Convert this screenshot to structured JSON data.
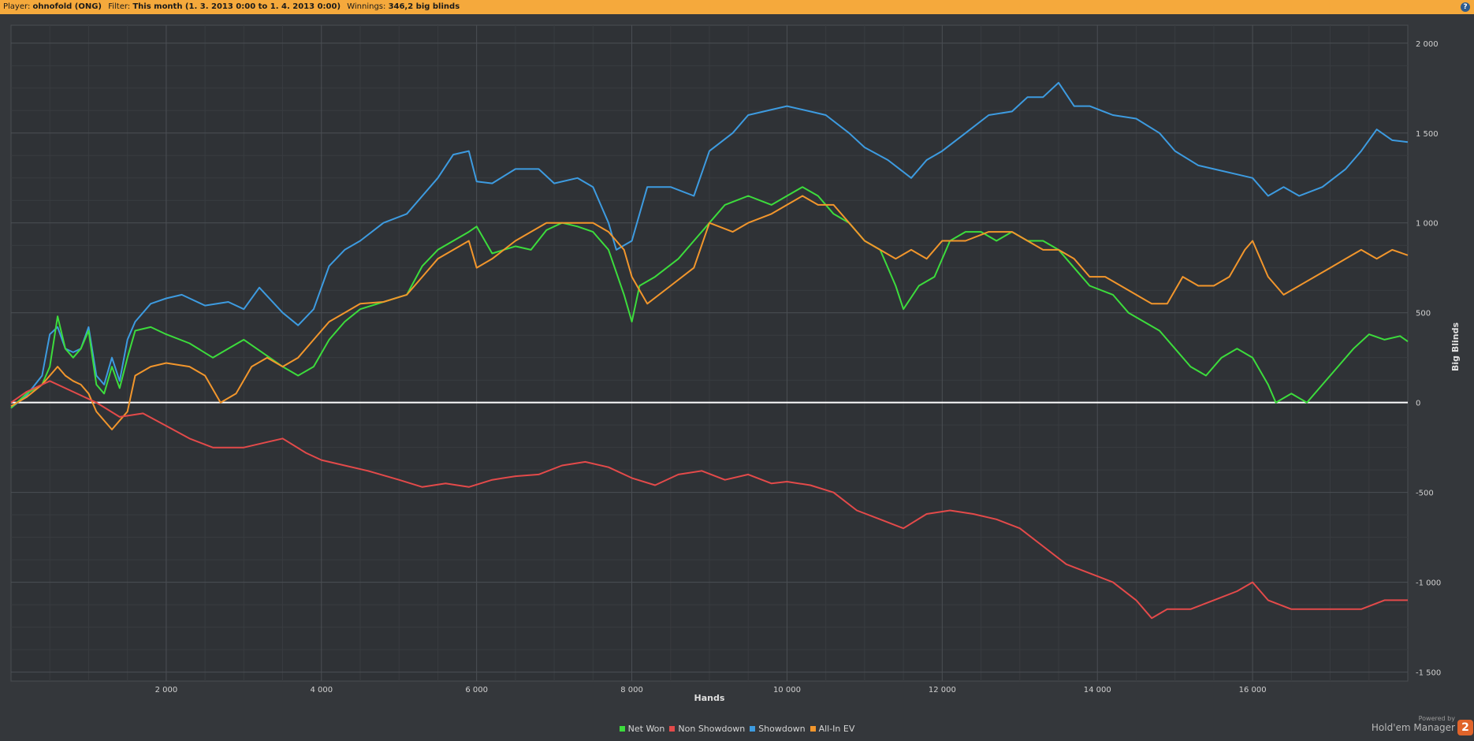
{
  "header": {
    "player_label": "Player:",
    "player_value": "ohnofold (ONG)",
    "filter_label": "Filter:",
    "filter_value": "This month (1. 3. 2013 0:00 to 1. 4. 2013 0:00)",
    "winnings_label": "Winnings:",
    "winnings_value": "346,2 big blinds",
    "help_symbol": "?"
  },
  "branding": {
    "powered_by": "Powered by",
    "product": "Hold'em Manager",
    "badge": "2"
  },
  "chart_data": {
    "type": "line",
    "xlabel": "Hands",
    "ylabel": "Big Blinds",
    "xlim": [
      0,
      18000
    ],
    "ylim": [
      -1550,
      2100
    ],
    "x_ticks": [
      2000,
      4000,
      6000,
      8000,
      10000,
      12000,
      14000,
      16000
    ],
    "x_tick_labels": [
      "2 000",
      "4 000",
      "6 000",
      "8 000",
      "10 000",
      "12 000",
      "14 000",
      "16 000"
    ],
    "y_ticks": [
      2000,
      1500,
      1000,
      500,
      0,
      -500,
      -1000,
      -1500
    ],
    "y_tick_labels": [
      "2 000",
      "1 500",
      "1 000",
      "500",
      "0",
      "-500",
      "-1 000",
      "-1 500"
    ],
    "grid": true,
    "legend_position": "bottom-center",
    "series": [
      {
        "name": "Showdown",
        "color": "#3d9be0",
        "x": [
          0,
          200,
          400,
          500,
          600,
          700,
          800,
          900,
          1000,
          1100,
          1200,
          1300,
          1400,
          1500,
          1600,
          1800,
          2000,
          2200,
          2500,
          2800,
          3000,
          3200,
          3500,
          3700,
          3900,
          4100,
          4300,
          4500,
          4800,
          5100,
          5300,
          5500,
          5700,
          5900,
          6000,
          6200,
          6500,
          6800,
          7000,
          7300,
          7500,
          7700,
          7800,
          8000,
          8200,
          8500,
          8800,
          9000,
          9300,
          9500,
          9800,
          10000,
          10300,
          10500,
          10800,
          11000,
          11300,
          11600,
          11800,
          12000,
          12300,
          12600,
          12900,
          13100,
          13300,
          13500,
          13700,
          13900,
          14200,
          14500,
          14800,
          15000,
          15300,
          15500,
          15800,
          16000,
          16200,
          16400,
          16600,
          16900,
          17200,
          17400,
          17600,
          17800,
          18000
        ],
        "y": [
          -30,
          40,
          150,
          380,
          420,
          300,
          280,
          300,
          420,
          150,
          100,
          250,
          120,
          350,
          450,
          550,
          580,
          600,
          540,
          560,
          520,
          640,
          500,
          430,
          520,
          760,
          850,
          900,
          1000,
          1050,
          1150,
          1250,
          1380,
          1400,
          1230,
          1220,
          1300,
          1300,
          1220,
          1250,
          1200,
          1000,
          850,
          900,
          1200,
          1200,
          1150,
          1400,
          1500,
          1600,
          1630,
          1650,
          1620,
          1600,
          1500,
          1420,
          1350,
          1250,
          1350,
          1400,
          1500,
          1600,
          1620,
          1700,
          1700,
          1780,
          1650,
          1650,
          1600,
          1580,
          1500,
          1400,
          1320,
          1300,
          1270,
          1250,
          1150,
          1200,
          1150,
          1200,
          1300,
          1400,
          1520,
          1460,
          1450
        ]
      },
      {
        "name": "Net Won",
        "color": "#3cdc3c",
        "x": [
          0,
          200,
          400,
          500,
          600,
          700,
          800,
          900,
          1000,
          1100,
          1200,
          1300,
          1400,
          1500,
          1600,
          1800,
          2000,
          2300,
          2600,
          2800,
          3000,
          3300,
          3500,
          3700,
          3900,
          4100,
          4300,
          4500,
          4800,
          5100,
          5300,
          5500,
          5700,
          5900,
          6000,
          6200,
          6500,
          6700,
          6900,
          7100,
          7300,
          7500,
          7700,
          7900,
          8000,
          8100,
          8300,
          8600,
          8800,
          9000,
          9200,
          9500,
          9800,
          10000,
          10200,
          10400,
          10600,
          10800,
          11000,
          11200,
          11400,
          11500,
          11700,
          11900,
          12100,
          12300,
          12500,
          12700,
          12900,
          13100,
          13300,
          13500,
          13700,
          13900,
          14200,
          14400,
          14600,
          14800,
          15000,
          15200,
          15400,
          15600,
          15800,
          16000,
          16200,
          16300,
          16500,
          16700,
          16900,
          17100,
          17300,
          17500,
          17700,
          17900,
          18000
        ],
        "y": [
          -30,
          50,
          100,
          200,
          480,
          300,
          250,
          300,
          400,
          100,
          50,
          200,
          80,
          250,
          400,
          420,
          380,
          330,
          250,
          300,
          350,
          260,
          200,
          150,
          200,
          350,
          450,
          520,
          560,
          600,
          760,
          850,
          900,
          950,
          980,
          830,
          870,
          850,
          960,
          1000,
          980,
          950,
          850,
          600,
          450,
          650,
          700,
          800,
          900,
          1000,
          1100,
          1150,
          1100,
          1150,
          1200,
          1150,
          1050,
          1000,
          900,
          850,
          650,
          520,
          650,
          700,
          900,
          950,
          950,
          900,
          950,
          900,
          900,
          850,
          750,
          650,
          600,
          500,
          450,
          400,
          300,
          200,
          150,
          250,
          300,
          250,
          100,
          0,
          50,
          0,
          100,
          200,
          300,
          380,
          350,
          370,
          340
        ]
      },
      {
        "name": "All-In EV",
        "color": "#f2962c",
        "x": [
          0,
          200,
          400,
          500,
          600,
          700,
          800,
          900,
          1000,
          1100,
          1200,
          1300,
          1400,
          1500,
          1600,
          1800,
          2000,
          2300,
          2500,
          2700,
          2900,
          3100,
          3300,
          3500,
          3700,
          3900,
          4100,
          4300,
          4500,
          4800,
          5100,
          5300,
          5500,
          5700,
          5900,
          6000,
          6200,
          6500,
          6700,
          6900,
          7100,
          7300,
          7500,
          7700,
          7900,
          8000,
          8200,
          8500,
          8800,
          9000,
          9300,
          9500,
          9800,
          10000,
          10200,
          10400,
          10600,
          10800,
          11000,
          11200,
          11400,
          11600,
          11800,
          12000,
          12300,
          12600,
          12900,
          13100,
          13300,
          13500,
          13700,
          13900,
          14100,
          14300,
          14500,
          14700,
          14900,
          15100,
          15300,
          15500,
          15700,
          15900,
          16000,
          16200,
          16400,
          16600,
          16800,
          17000,
          17200,
          17400,
          17600,
          17800,
          18000
        ],
        "y": [
          -20,
          30,
          100,
          150,
          200,
          150,
          120,
          100,
          50,
          -50,
          -100,
          -150,
          -100,
          -50,
          150,
          200,
          220,
          200,
          150,
          0,
          50,
          200,
          250,
          200,
          250,
          350,
          450,
          500,
          550,
          560,
          600,
          700,
          800,
          850,
          900,
          750,
          800,
          900,
          950,
          1000,
          1000,
          1000,
          1000,
          950,
          850,
          700,
          550,
          650,
          750,
          1000,
          950,
          1000,
          1050,
          1100,
          1150,
          1100,
          1100,
          1000,
          900,
          850,
          800,
          850,
          800,
          900,
          900,
          950,
          950,
          900,
          850,
          850,
          800,
          700,
          700,
          650,
          600,
          550,
          550,
          700,
          650,
          650,
          700,
          850,
          900,
          700,
          600,
          650,
          700,
          750,
          800,
          850,
          800,
          850,
          820
        ]
      },
      {
        "name": "Non Showdown",
        "color": "#e34a4a",
        "x": [
          0,
          200,
          400,
          500,
          800,
          1100,
          1400,
          1700,
          2000,
          2300,
          2600,
          3000,
          3300,
          3500,
          3800,
          4000,
          4300,
          4600,
          5000,
          5300,
          5600,
          5900,
          6200,
          6500,
          6800,
          7100,
          7400,
          7700,
          8000,
          8300,
          8600,
          8900,
          9200,
          9500,
          9800,
          10000,
          10300,
          10600,
          10900,
          11200,
          11500,
          11800,
          12100,
          12400,
          12700,
          13000,
          13300,
          13600,
          13900,
          14200,
          14500,
          14700,
          14900,
          15200,
          15500,
          15800,
          16000,
          16200,
          16500,
          16800,
          17100,
          17400,
          17700,
          18000
        ],
        "y": [
          0,
          60,
          100,
          120,
          60,
          0,
          -80,
          -60,
          -130,
          -200,
          -250,
          -250,
          -220,
          -200,
          -280,
          -320,
          -350,
          -380,
          -430,
          -470,
          -450,
          -470,
          -430,
          -410,
          -400,
          -350,
          -330,
          -360,
          -420,
          -460,
          -400,
          -380,
          -430,
          -400,
          -450,
          -440,
          -460,
          -500,
          -600,
          -650,
          -700,
          -620,
          -600,
          -620,
          -650,
          -700,
          -800,
          -900,
          -950,
          -1000,
          -1100,
          -1200,
          -1150,
          -1150,
          -1100,
          -1050,
          -1000,
          -1100,
          -1150,
          -1150,
          -1150,
          -1150,
          -1100,
          -1100
        ]
      }
    ]
  }
}
